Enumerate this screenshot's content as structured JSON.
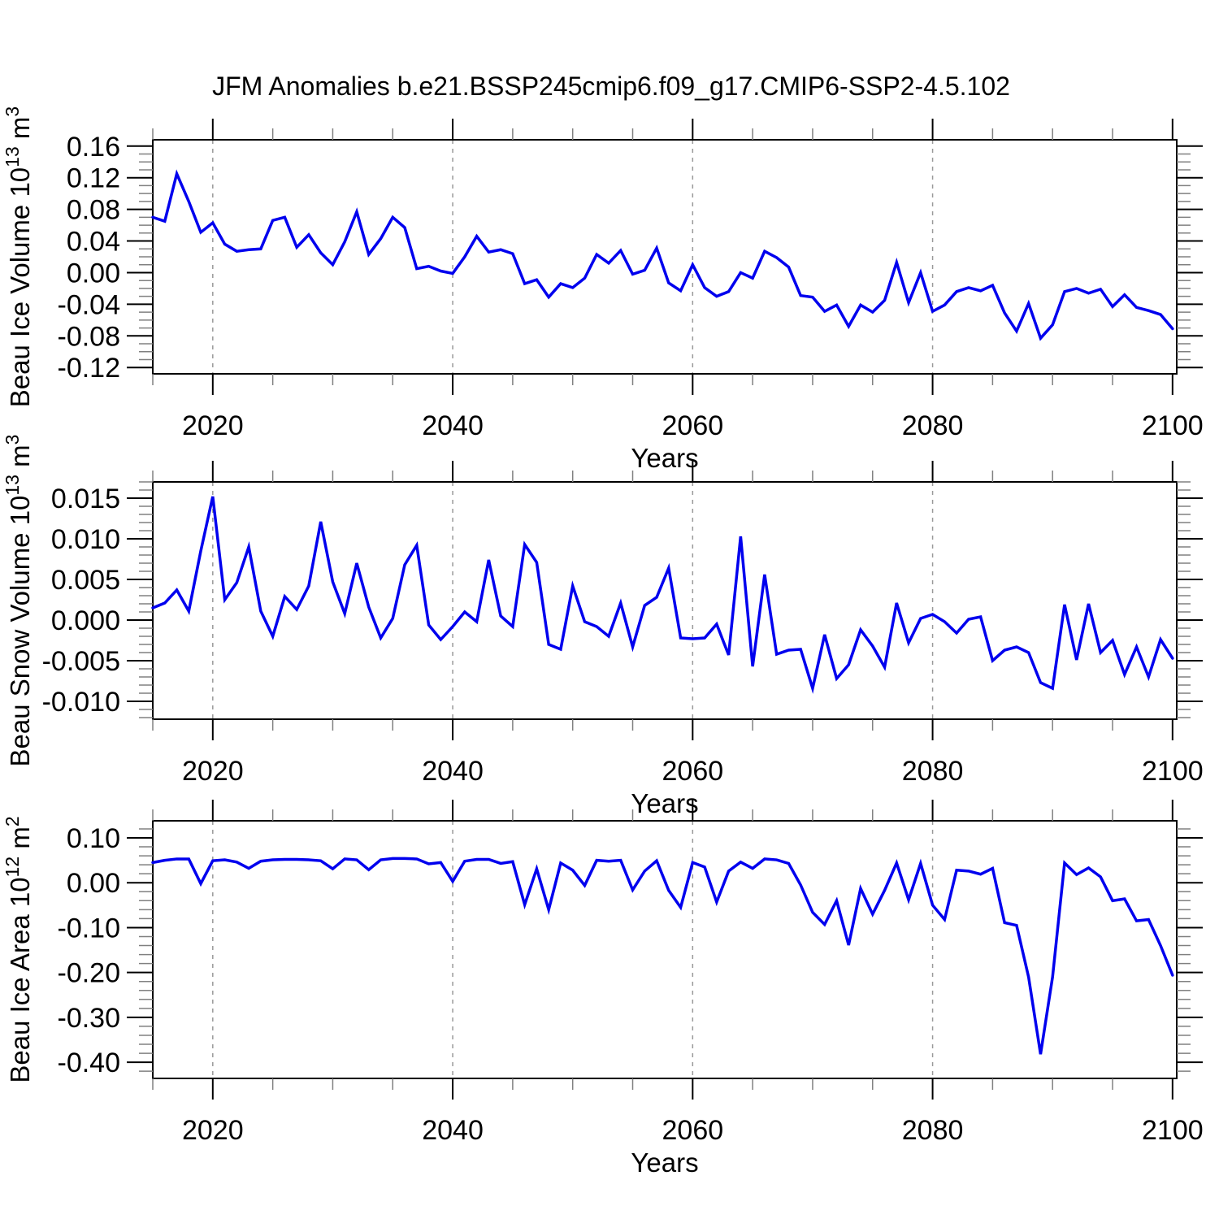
{
  "title": "JFM Anomalies b.e21.BSSP245cmip6.f09_g17.CMIP6-SSP2-4.5.102",
  "styles": {
    "line_color": "#0000ee",
    "grid_color": "#999999",
    "frame_color": "#000000",
    "minor_tick_color": "#808080",
    "text_color": "#000000"
  },
  "chart_data": [
    {
      "type": "line",
      "id": "beau-ice-volume",
      "ylabel_text": "Beau Ice Volume 10^13 m^3",
      "ylabel_segments": [
        {
          "t": "Beau Ice Volume 10"
        },
        {
          "t": "13",
          "sup": true
        },
        {
          "t": " m"
        },
        {
          "t": "3",
          "sup": true
        }
      ],
      "xlabel": "Years",
      "x_start": 2015,
      "x_step": 1,
      "xlim": [
        2015,
        2100.35
      ],
      "xticks": [
        2020,
        2040,
        2060,
        2080,
        2100
      ],
      "xtick_labels": [
        "2020",
        "2040",
        "2060",
        "2080",
        "2100"
      ],
      "x_minor_step": 5,
      "x_gridlines": [
        2020,
        2040,
        2060,
        2080
      ],
      "ylim": [
        -0.128,
        0.168
      ],
      "yticks": [
        0.16,
        0.12,
        0.08,
        0.04,
        0.0,
        -0.04,
        -0.08,
        -0.12
      ],
      "ytick_labels": [
        "0.16",
        "0.12",
        "0.08",
        "0.04",
        "0.00",
        "-0.04",
        "-0.08",
        "-0.12"
      ],
      "y_minor_step": 0.01,
      "values": [
        0.07,
        0.065,
        0.125,
        0.09,
        0.051,
        0.063,
        0.036,
        0.027,
        0.029,
        0.03,
        0.066,
        0.07,
        0.032,
        0.048,
        0.025,
        0.01,
        0.039,
        0.077,
        0.023,
        0.043,
        0.07,
        0.057,
        0.005,
        0.008,
        0.002,
        -0.001,
        0.02,
        0.046,
        0.026,
        0.029,
        0.024,
        -0.014,
        -0.009,
        -0.031,
        -0.014,
        -0.019,
        -0.007,
        0.023,
        0.012,
        0.028,
        -0.002,
        0.003,
        0.031,
        -0.013,
        -0.023,
        0.01,
        -0.019,
        -0.03,
        -0.024,
        0.0,
        -0.007,
        0.027,
        0.019,
        0.007,
        -0.029,
        -0.031,
        -0.049,
        -0.041,
        -0.068,
        -0.041,
        -0.05,
        -0.035,
        0.013,
        -0.038,
        0.0,
        -0.049,
        -0.041,
        -0.024,
        -0.019,
        -0.023,
        -0.016,
        -0.051,
        -0.074,
        -0.039,
        -0.083,
        -0.066,
        -0.024,
        -0.02,
        -0.026,
        -0.021,
        -0.043,
        -0.028,
        -0.044,
        -0.048,
        -0.053,
        -0.071
      ]
    },
    {
      "type": "line",
      "id": "beau-snow-volume",
      "ylabel_text": "Beau Snow Volume 10^13 m^3",
      "ylabel_segments": [
        {
          "t": "Beau Snow Volume 10"
        },
        {
          "t": "13",
          "sup": true
        },
        {
          "t": " m"
        },
        {
          "t": "3",
          "sup": true
        }
      ],
      "xlabel": "Years",
      "x_start": 2015,
      "x_step": 1,
      "xlim": [
        2015,
        2100.35
      ],
      "xticks": [
        2020,
        2040,
        2060,
        2080,
        2100
      ],
      "xtick_labels": [
        "2020",
        "2040",
        "2060",
        "2080",
        "2100"
      ],
      "x_minor_step": 5,
      "x_gridlines": [
        2020,
        2040,
        2060,
        2080
      ],
      "ylim": [
        -0.0122,
        0.017
      ],
      "yticks": [
        0.015,
        0.01,
        0.005,
        0.0,
        -0.005,
        -0.01
      ],
      "ytick_labels": [
        "0.015",
        "0.010",
        "0.005",
        "0.000",
        "-0.005",
        "-0.010"
      ],
      "y_minor_step": 0.001,
      "values": [
        0.0015,
        0.0021,
        0.0037,
        0.0011,
        0.0085,
        0.0152,
        0.0025,
        0.0046,
        0.009,
        0.0011,
        -0.002,
        0.0029,
        0.0013,
        0.0042,
        0.0121,
        0.0047,
        0.0008,
        0.007,
        0.0016,
        -0.0022,
        0.0002,
        0.0068,
        0.0092,
        -0.0006,
        -0.0024,
        -0.0008,
        0.001,
        -0.0002,
        0.0074,
        0.0005,
        -0.0008,
        0.0093,
        0.0071,
        -0.003,
        -0.0036,
        0.0042,
        -0.0002,
        -0.0008,
        -0.002,
        0.0021,
        -0.0033,
        0.0018,
        0.0028,
        0.0064,
        -0.0022,
        -0.0023,
        -0.0022,
        -0.0005,
        -0.0043,
        0.0103,
        -0.0057,
        0.0056,
        -0.0042,
        -0.0037,
        -0.0036,
        -0.0084,
        -0.0018,
        -0.0072,
        -0.0055,
        -0.0012,
        -0.0032,
        -0.0058,
        0.0021,
        -0.0028,
        0.0002,
        0.0007,
        -0.0002,
        -0.0016,
        0.0001,
        0.0004,
        -0.005,
        -0.0037,
        -0.0033,
        -0.004,
        -0.0077,
        -0.0084,
        0.0019,
        -0.0049,
        0.002,
        -0.004,
        -0.0025,
        -0.0067,
        -0.0033,
        -0.007,
        -0.0024,
        -0.0047
      ]
    },
    {
      "type": "line",
      "id": "beau-ice-area",
      "ylabel_text": "Beau Ice Area 10^12 m^2",
      "ylabel_segments": [
        {
          "t": "Beau Ice Area 10"
        },
        {
          "t": "12",
          "sup": true
        },
        {
          "t": " m"
        },
        {
          "t": "2",
          "sup": true
        }
      ],
      "xlabel": "Years",
      "x_start": 2015,
      "x_step": 1,
      "xlim": [
        2015,
        2100.35
      ],
      "xticks": [
        2020,
        2040,
        2060,
        2080,
        2100
      ],
      "xtick_labels": [
        "2020",
        "2040",
        "2060",
        "2080",
        "2100"
      ],
      "x_minor_step": 5,
      "x_gridlines": [
        2020,
        2040,
        2060,
        2080
      ],
      "ylim": [
        -0.436,
        0.138
      ],
      "yticks": [
        0.1,
        0.0,
        -0.1,
        -0.2,
        -0.3,
        -0.4
      ],
      "ytick_labels": [
        "0.10",
        "0.00",
        "-0.10",
        "-0.20",
        "-0.30",
        "-0.40"
      ],
      "y_minor_step": 0.02,
      "values": [
        0.045,
        0.05,
        0.053,
        0.053,
        -0.002,
        0.049,
        0.051,
        0.046,
        0.032,
        0.048,
        0.051,
        0.052,
        0.052,
        0.051,
        0.049,
        0.031,
        0.053,
        0.051,
        0.029,
        0.051,
        0.054,
        0.054,
        0.053,
        0.042,
        0.045,
        0.003,
        0.048,
        0.052,
        0.052,
        0.043,
        0.047,
        -0.049,
        0.031,
        -0.06,
        0.044,
        0.028,
        -0.006,
        0.05,
        0.048,
        0.05,
        -0.016,
        0.026,
        0.049,
        -0.017,
        -0.055,
        0.045,
        0.035,
        -0.043,
        0.026,
        0.046,
        0.032,
        0.053,
        0.051,
        0.043,
        -0.005,
        -0.066,
        -0.093,
        -0.04,
        -0.139,
        -0.013,
        -0.07,
        -0.017,
        0.044,
        -0.038,
        0.043,
        -0.05,
        -0.082,
        0.028,
        0.026,
        0.019,
        0.032,
        -0.089,
        -0.095,
        -0.21,
        -0.382,
        -0.21,
        0.044,
        0.018,
        0.033,
        0.013,
        -0.04,
        -0.036,
        -0.085,
        -0.082,
        -0.14,
        -0.206
      ]
    }
  ]
}
